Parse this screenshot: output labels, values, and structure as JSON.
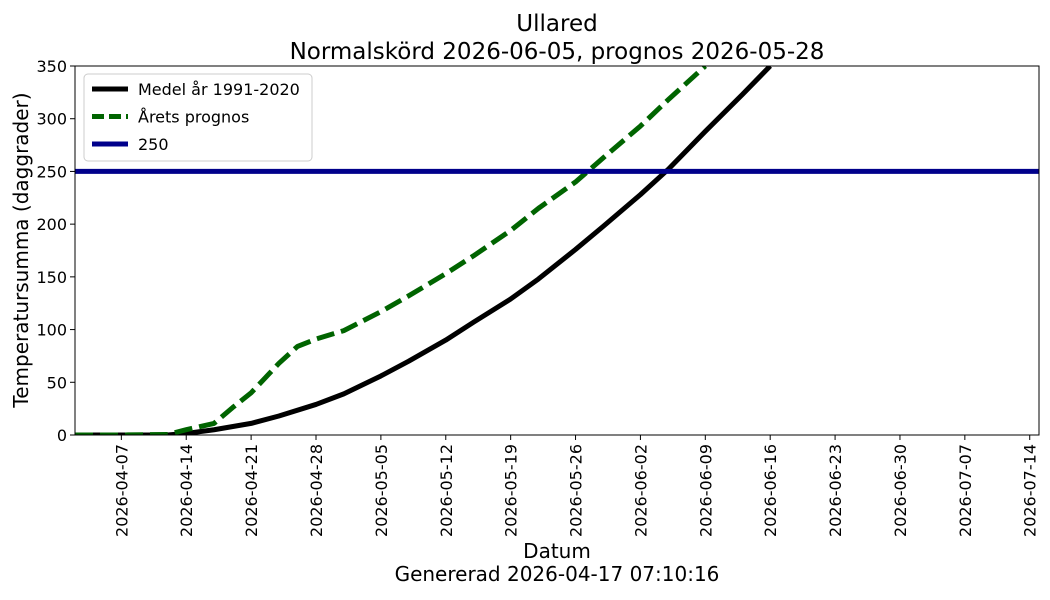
{
  "chart_data": {
    "type": "line",
    "title": "Ullared",
    "subtitle": "Normalskörd 2026-06-05, prognos 2026-05-28",
    "xlabel": "Datum",
    "ylabel": "Temperatursumma (daggrader)",
    "footer": "Genererad 2026-04-17 07:10:16",
    "xlim": [
      "2026-04-02",
      "2026-07-15"
    ],
    "ylim": [
      0,
      350
    ],
    "x_ticks": [
      "2026-04-07",
      "2026-04-14",
      "2026-04-21",
      "2026-04-28",
      "2026-05-05",
      "2026-05-12",
      "2026-05-19",
      "2026-05-26",
      "2026-06-02",
      "2026-06-09",
      "2026-06-16",
      "2026-06-23",
      "2026-06-30",
      "2026-07-07",
      "2026-07-14"
    ],
    "y_ticks": [
      "0",
      "50",
      "100",
      "150",
      "200",
      "250",
      "300",
      "350"
    ],
    "grid": false,
    "legend_position": "top-left",
    "series": [
      {
        "name": "Medel år 1991-2020",
        "color": "#000000",
        "style": "solid",
        "points": [
          [
            "2026-04-02",
            0
          ],
          [
            "2026-04-07",
            0
          ],
          [
            "2026-04-12",
            0
          ],
          [
            "2026-04-14",
            1.5
          ],
          [
            "2026-04-17",
            5
          ],
          [
            "2026-04-21",
            11
          ],
          [
            "2026-04-24",
            18
          ],
          [
            "2026-04-28",
            29
          ],
          [
            "2026-05-01",
            39
          ],
          [
            "2026-05-05",
            56
          ],
          [
            "2026-05-08",
            70
          ],
          [
            "2026-05-12",
            90
          ],
          [
            "2026-05-15",
            107
          ],
          [
            "2026-05-19",
            129
          ],
          [
            "2026-05-22",
            148
          ],
          [
            "2026-05-26",
            176
          ],
          [
            "2026-05-29",
            198
          ],
          [
            "2026-06-02",
            228
          ],
          [
            "2026-06-05",
            252
          ],
          [
            "2026-06-09",
            288
          ],
          [
            "2026-06-13",
            323
          ],
          [
            "2026-06-16",
            350
          ]
        ]
      },
      {
        "name": "Årets prognos",
        "color": "#006400",
        "style": "dashed",
        "points": [
          [
            "2026-04-02",
            0
          ],
          [
            "2026-04-07",
            0
          ],
          [
            "2026-04-12",
            0.5
          ],
          [
            "2026-04-14",
            5
          ],
          [
            "2026-04-17",
            11
          ],
          [
            "2026-04-19",
            26
          ],
          [
            "2026-04-21",
            40
          ],
          [
            "2026-04-24",
            68
          ],
          [
            "2026-04-26",
            84
          ],
          [
            "2026-04-28",
            91
          ],
          [
            "2026-05-01",
            99
          ],
          [
            "2026-05-05",
            117
          ],
          [
            "2026-05-08",
            132
          ],
          [
            "2026-05-12",
            153
          ],
          [
            "2026-05-15",
            170
          ],
          [
            "2026-05-19",
            194
          ],
          [
            "2026-05-22",
            215
          ],
          [
            "2026-05-26",
            240
          ],
          [
            "2026-05-29",
            263
          ],
          [
            "2026-06-02",
            293
          ],
          [
            "2026-06-05",
            318
          ],
          [
            "2026-06-09",
            350
          ]
        ]
      },
      {
        "name": "250",
        "color": "#00008b",
        "style": "solid",
        "constant": 250
      }
    ]
  }
}
